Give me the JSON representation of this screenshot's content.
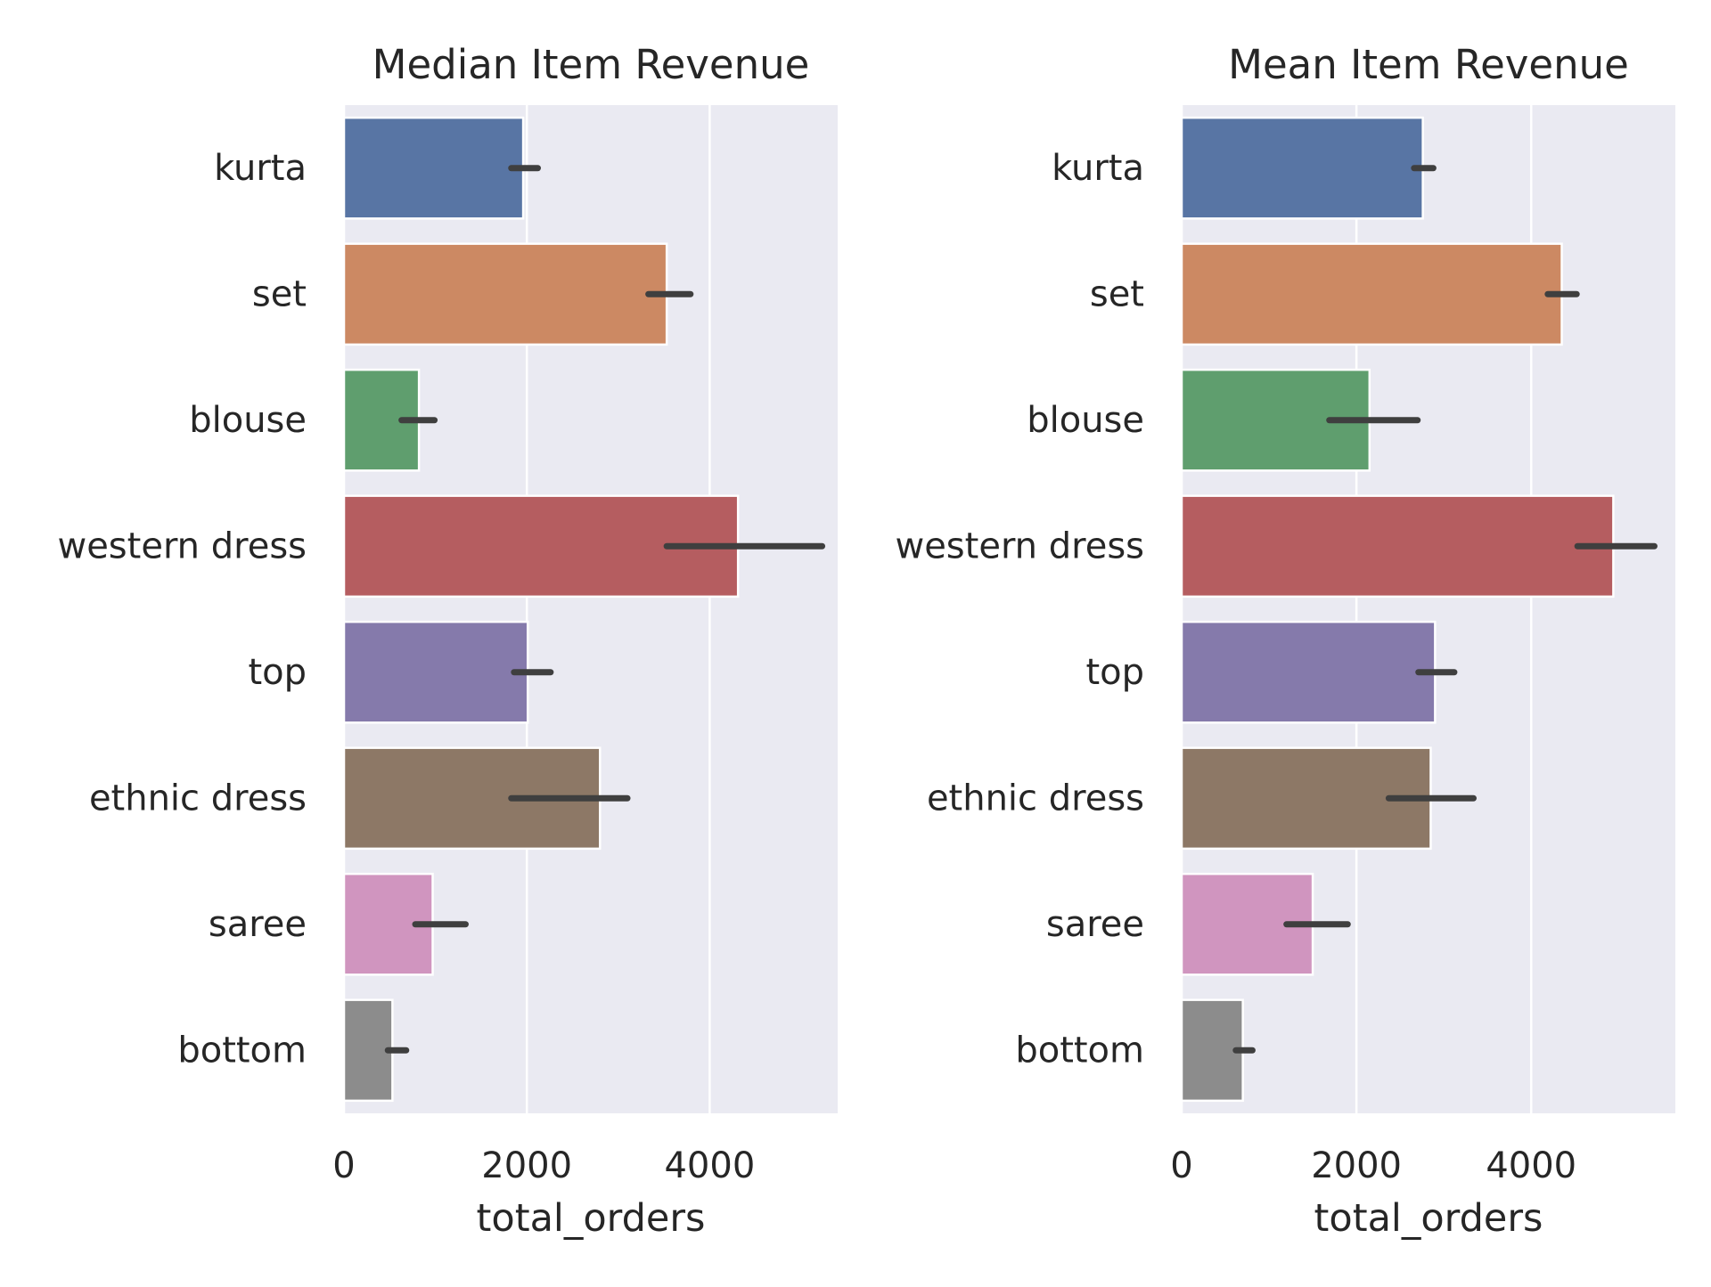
{
  "chart_data": [
    {
      "type": "bar",
      "orientation": "horizontal",
      "title": "Median Item Revenue",
      "xlabel": "total_orders",
      "ylabel": "",
      "categories": [
        "kurta",
        "set",
        "blouse",
        "western dress",
        "top",
        "ethnic dress",
        "saree",
        "bottom"
      ],
      "values": [
        1960,
        3530,
        820,
        4310,
        2010,
        2800,
        970,
        530
      ],
      "error_low": [
        1830,
        3330,
        630,
        3530,
        1860,
        1830,
        780,
        480
      ],
      "error_high": [
        2120,
        3790,
        990,
        5230,
        2260,
        3100,
        1330,
        680
      ],
      "xlim": [
        0,
        5400
      ],
      "xticks": [
        0,
        2000,
        4000
      ],
      "xtick_labels": [
        "0",
        "2000",
        "4000"
      ],
      "grid": true
    },
    {
      "type": "bar",
      "orientation": "horizontal",
      "title": "Mean Item Revenue",
      "xlabel": "total_orders",
      "ylabel": "",
      "categories": [
        "kurta",
        "set",
        "blouse",
        "western dress",
        "top",
        "ethnic dress",
        "saree",
        "bottom"
      ],
      "values": [
        2760,
        4350,
        2150,
        4940,
        2900,
        2850,
        1500,
        700
      ],
      "error_low": [
        2660,
        4190,
        1690,
        4530,
        2710,
        2370,
        1200,
        620
      ],
      "error_high": [
        2880,
        4520,
        2700,
        5410,
        3120,
        3340,
        1900,
        810
      ],
      "xlim": [
        0,
        5650
      ],
      "xticks": [
        0,
        2000,
        4000
      ],
      "xtick_labels": [
        "0",
        "2000",
        "4000"
      ],
      "grid": true
    }
  ],
  "colors": {
    "panel_background": "#EAEAF2",
    "grid": "#FFFFFF",
    "error_bar": "#3F3F3F",
    "bars": [
      "#5875A4",
      "#CC8963",
      "#5F9E6E",
      "#B55D60",
      "#857AAB",
      "#8D7866",
      "#D095BF",
      "#8C8C8C"
    ]
  }
}
